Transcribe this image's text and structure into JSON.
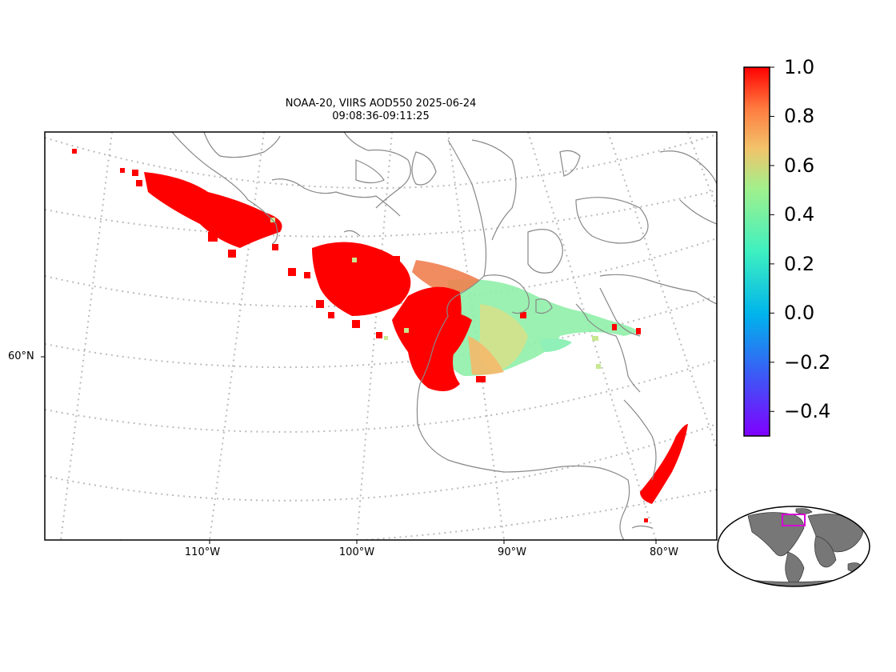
{
  "map": {
    "title_line1": "NOAA-20, VIIRS AOD550 2025-06-24",
    "title_line2": "09:08:36-09:11:25",
    "lon_labels": [
      "110°W",
      "100°W",
      "90°W",
      "80°W"
    ],
    "lat_labels": [
      "60°N"
    ],
    "colors": {
      "coastline": "#888888",
      "graticule": "#bbbbbb",
      "high_aod": "#ff0000",
      "inset_land": "#777777",
      "inset_box": "#d400d4"
    }
  },
  "colorbar": {
    "colormap": "rainbow",
    "min": -0.5,
    "max": 1.0,
    "ticks": [
      "1.0",
      "0.8",
      "0.6",
      "0.4",
      "0.2",
      "0.0",
      "−0.2",
      "−0.4"
    ],
    "tick_values": [
      1.0,
      0.8,
      0.6,
      0.4,
      0.2,
      0.0,
      -0.2,
      -0.4
    ]
  },
  "inset": {
    "content": "global locator map",
    "highlight_region": "North America"
  }
}
